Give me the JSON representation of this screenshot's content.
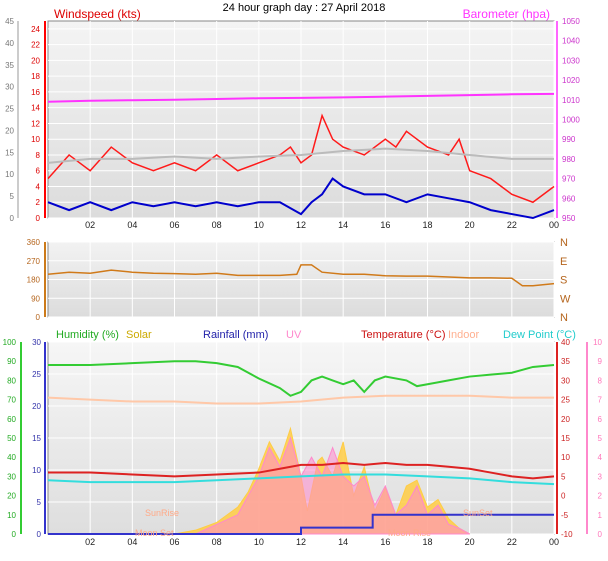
{
  "title": "24 hour graph day : 27 April 2018",
  "x_ticks": [
    "02",
    "04",
    "06",
    "08",
    "10",
    "12",
    "14",
    "16",
    "18",
    "20",
    "22",
    "00"
  ],
  "colors": {
    "wind_gust": "#ff1a1a",
    "wind_avg": "#bbbbbb",
    "wind_line": "#0000cc",
    "barometer": "#ff33ff",
    "direction": "#d07a1a",
    "humidity": "#33cc33",
    "solar": "#ffcc44",
    "rainfall": "#3333cc",
    "uv": "#ff88cc",
    "temperature": "#dd2222",
    "indoor": "#ffc8a8",
    "dewpoint": "#33dddd"
  },
  "chart_data": [
    {
      "type": "line",
      "title": "",
      "left_axis_label": "Windspeed (kts)",
      "right_axis_label": "Barometer (hpa)",
      "left_ticks_outer": [
        0,
        5,
        10,
        15,
        20,
        25,
        30,
        35,
        40,
        45
      ],
      "left_ticks_inner": [
        0,
        2,
        4,
        6,
        8,
        10,
        12,
        14,
        16,
        18,
        20,
        22,
        24
      ],
      "right_ticks": [
        950,
        960,
        970,
        980,
        990,
        1000,
        1010,
        1020,
        1030,
        1040,
        1050
      ],
      "x_range_hours": [
        0,
        24
      ],
      "wind_ylim": [
        0,
        25
      ],
      "baro_ylim": [
        950,
        1050
      ],
      "series": [
        {
          "name": "Barometer (hpa)",
          "axis": "right",
          "x": [
            0,
            2,
            4,
            6,
            8,
            10,
            12,
            14,
            16,
            18,
            20,
            22,
            24
          ],
          "values": [
            1009,
            1009.5,
            1009.8,
            1010,
            1010.4,
            1010.8,
            1011,
            1011.2,
            1011.6,
            1012,
            1012.4,
            1012.8,
            1013
          ]
        },
        {
          "name": "",
          "axis": "left",
          "role": "gust",
          "x": [
            0,
            1,
            2,
            3,
            4,
            5,
            6,
            7,
            8,
            9,
            10,
            11,
            11.5,
            12,
            12.5,
            13,
            13.5,
            14,
            15,
            16,
            16.5,
            17,
            18,
            19,
            19.5,
            20,
            21,
            22,
            23,
            24
          ],
          "values": [
            5,
            8,
            6,
            9,
            7,
            6,
            7,
            6,
            8,
            6,
            7,
            8,
            9,
            7,
            8,
            13,
            10,
            9,
            8,
            10,
            9,
            11,
            9,
            8,
            10,
            6,
            5,
            3,
            2,
            4
          ]
        },
        {
          "name": "",
          "axis": "left",
          "role": "average",
          "x": [
            0,
            2,
            4,
            6,
            8,
            10,
            12,
            14,
            16,
            18,
            20,
            22,
            24
          ],
          "values": [
            7,
            7.5,
            7.5,
            7.8,
            7.5,
            7.8,
            8,
            8.5,
            8.8,
            8.5,
            8,
            7.5,
            7.5
          ]
        },
        {
          "name": "",
          "axis": "left",
          "role": "line",
          "x": [
            0,
            1,
            2,
            3,
            4,
            5,
            6,
            7,
            8,
            9,
            10,
            11,
            12,
            12.5,
            13,
            13.5,
            14,
            15,
            16,
            17,
            18,
            19,
            20,
            21,
            22,
            23,
            24
          ],
          "values": [
            2,
            1,
            2,
            1,
            2,
            1.5,
            2,
            1.5,
            2,
            1.5,
            2,
            2,
            0.5,
            2,
            3,
            5,
            4,
            3,
            3,
            2,
            3,
            2.5,
            2,
            1,
            0.5,
            0,
            1
          ]
        }
      ]
    },
    {
      "type": "line",
      "title": "",
      "left_ticks": [
        0,
        90,
        180,
        270,
        360
      ],
      "right_ticks": [
        "N",
        "W",
        "S",
        "E",
        "N"
      ],
      "x_range_hours": [
        0,
        24
      ],
      "ylim": [
        0,
        360
      ],
      "series": [
        {
          "name": "",
          "x": [
            0,
            1,
            2,
            3,
            4,
            5,
            6,
            7,
            8,
            9,
            10,
            11,
            11.8,
            12,
            12.5,
            13,
            14,
            15,
            16,
            17,
            18,
            19,
            20,
            21,
            22,
            22.5,
            23,
            24
          ],
          "values": [
            205,
            215,
            210,
            225,
            215,
            210,
            208,
            205,
            210,
            200,
            200,
            200,
            205,
            250,
            250,
            215,
            205,
            205,
            198,
            196,
            196,
            192,
            188,
            188,
            186,
            150,
            150,
            160
          ]
        }
      ]
    },
    {
      "type": "line",
      "title": "",
      "legend": [
        "Humidity (%)",
        "Solar",
        "Rainfall (mm)",
        "UV",
        "Temperature (°C)",
        "Indoor",
        "Dew Point (°C)"
      ],
      "left_ticks_hum": [
        0,
        10,
        20,
        30,
        40,
        50,
        60,
        70,
        80,
        90,
        100
      ],
      "left_ticks_rain": [
        0,
        5,
        10,
        15,
        20,
        25,
        30
      ],
      "right_ticks_temp": [
        -10,
        -5,
        0,
        5,
        10,
        15,
        20,
        25,
        30,
        35,
        40
      ],
      "right_ticks_uv": [
        0,
        1,
        2,
        3,
        4,
        5,
        6,
        7,
        8,
        9,
        10
      ],
      "x_range_hours": [
        0,
        24
      ],
      "hum_ylim": [
        0,
        100
      ],
      "temp_ylim": [
        -10,
        40
      ],
      "annotations": [
        "SunRise",
        "Moon Set",
        "Moon Rise",
        "SunSet"
      ],
      "series": [
        {
          "name": "Humidity (%)",
          "axis": "hum",
          "x": [
            0,
            2,
            4,
            6,
            7,
            8,
            9,
            10,
            11,
            11.5,
            12,
            12.5,
            13,
            13.5,
            14,
            14.5,
            15,
            15.5,
            16,
            17,
            17.5,
            18,
            19,
            20,
            21,
            22,
            23,
            24
          ],
          "values": [
            88,
            88,
            89,
            90,
            90,
            89,
            87,
            81,
            76,
            72,
            74,
            80,
            82,
            80,
            78,
            80,
            74,
            80,
            82,
            80,
            77,
            78,
            80,
            82,
            83,
            84,
            87,
            88
          ]
        },
        {
          "name": "Indoor",
          "axis": "temp",
          "x": [
            0,
            2,
            4,
            6,
            8,
            10,
            12,
            14,
            16,
            18,
            20,
            22,
            24
          ],
          "values": [
            25.5,
            25,
            24.5,
            24.5,
            24,
            24,
            24.5,
            25.5,
            26,
            26,
            26,
            25.5,
            25.5
          ]
        },
        {
          "name": "Temperature (°C)",
          "axis": "temp",
          "x": [
            0,
            2,
            4,
            6,
            8,
            10,
            11,
            12,
            13,
            14,
            15,
            16,
            17,
            18,
            19,
            20,
            21,
            22,
            23,
            24
          ],
          "values": [
            6,
            6,
            5.5,
            5,
            5.5,
            6,
            7,
            8,
            8,
            8.5,
            8,
            8.5,
            8,
            8,
            7.5,
            7,
            6,
            5,
            4.5,
            5
          ]
        },
        {
          "name": "Dew Point (°C)",
          "axis": "temp",
          "x": [
            0,
            2,
            4,
            6,
            8,
            10,
            12,
            14,
            16,
            18,
            20,
            22,
            24
          ],
          "values": [
            4,
            3.5,
            3.5,
            3.5,
            4,
            4.5,
            5,
            5.5,
            5.5,
            5,
            4.5,
            3.5,
            3
          ]
        },
        {
          "name": "Rainfall (mm)",
          "axis": "rain",
          "step": true,
          "x": [
            0,
            11.8,
            12,
            15.2,
            15.4,
            24
          ],
          "values": [
            0,
            0,
            1,
            1,
            3,
            3
          ]
        },
        {
          "name": "Solar",
          "axis": "hum",
          "area": true,
          "x": [
            6,
            7,
            8,
            9,
            9.5,
            10,
            10.5,
            11,
            11.5,
            12,
            12.3,
            12.8,
            13,
            13.5,
            14,
            14.5,
            15,
            15.5,
            16,
            16.5,
            17,
            17.5,
            18,
            18.5,
            19,
            19.5,
            20
          ],
          "values": [
            0,
            2,
            6,
            14,
            22,
            34,
            48,
            38,
            55,
            30,
            12,
            38,
            40,
            30,
            48,
            20,
            35,
            12,
            24,
            10,
            25,
            28,
            14,
            18,
            8,
            3,
            0
          ]
        },
        {
          "name": "UV",
          "axis": "uv",
          "area": true,
          "x": [
            7,
            8,
            9,
            9.5,
            10,
            10.5,
            11,
            11.5,
            12,
            12.5,
            13,
            13.5,
            14,
            14.5,
            15,
            15.5,
            16,
            16.5,
            17,
            17.5,
            18,
            18.5,
            19,
            19.5,
            20
          ],
          "values": [
            0,
            0.5,
            1,
            2,
            3,
            4.5,
            3.5,
            5,
            3,
            4,
            3,
            4.5,
            3,
            2.5,
            3,
            1.5,
            2.5,
            1,
            1.5,
            2.5,
            1,
            1.5,
            0.5,
            0.3,
            0
          ]
        }
      ]
    }
  ]
}
